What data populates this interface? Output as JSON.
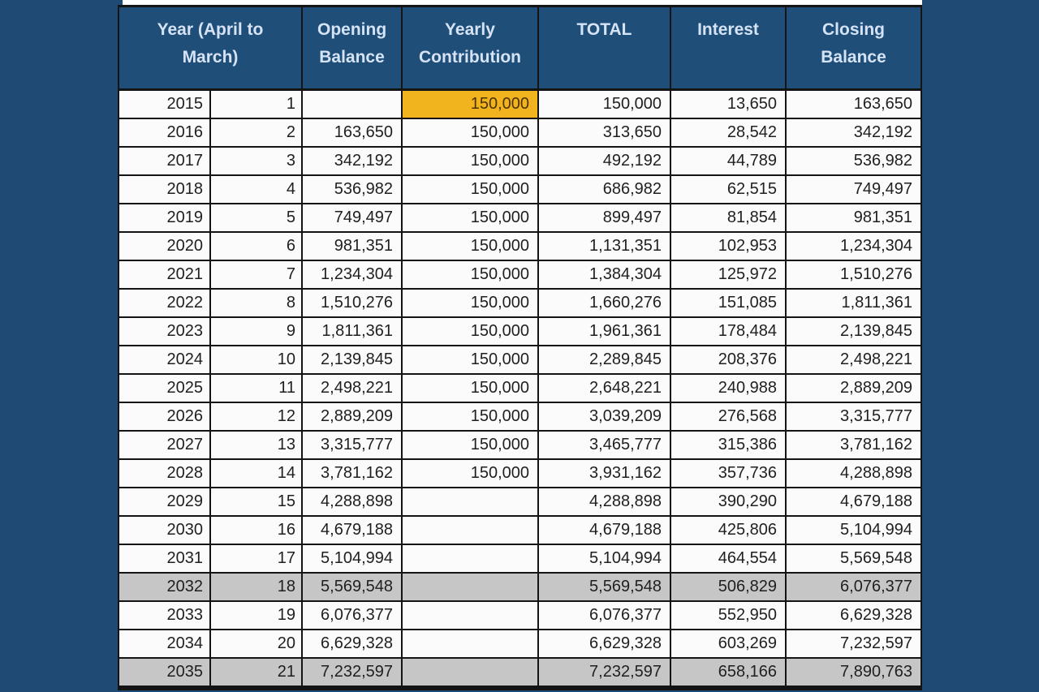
{
  "colors": {
    "page_bg": "#1e4a73",
    "strip_bg": "#ffffff",
    "header_bg": "#1f4e79",
    "header_text": "#d5e3f5",
    "row_bg": "#fbfbfb",
    "row_shaded_bg": "#c6c6c6",
    "highlight_bg": "#f2b41e",
    "highlight_text": "#4d3300",
    "grid_line": "#141414",
    "cell_text": "#1f1f1f"
  },
  "table": {
    "headers": {
      "year": "Year (April to March)",
      "opening": "Opening Balance",
      "contribution": "Yearly Contribution",
      "total": "TOTAL",
      "interest": "Interest",
      "closing": "Closing Balance"
    },
    "rows": [
      {
        "year": "2015",
        "n": "1",
        "opening": "",
        "contribution": "150,000",
        "total": "150,000",
        "interest": "13,650",
        "closing": "163,650",
        "highlight_contribution": true,
        "shaded": false
      },
      {
        "year": "2016",
        "n": "2",
        "opening": "163,650",
        "contribution": "150,000",
        "total": "313,650",
        "interest": "28,542",
        "closing": "342,192",
        "highlight_contribution": false,
        "shaded": false
      },
      {
        "year": "2017",
        "n": "3",
        "opening": "342,192",
        "contribution": "150,000",
        "total": "492,192",
        "interest": "44,789",
        "closing": "536,982",
        "highlight_contribution": false,
        "shaded": false
      },
      {
        "year": "2018",
        "n": "4",
        "opening": "536,982",
        "contribution": "150,000",
        "total": "686,982",
        "interest": "62,515",
        "closing": "749,497",
        "highlight_contribution": false,
        "shaded": false
      },
      {
        "year": "2019",
        "n": "5",
        "opening": "749,497",
        "contribution": "150,000",
        "total": "899,497",
        "interest": "81,854",
        "closing": "981,351",
        "highlight_contribution": false,
        "shaded": false
      },
      {
        "year": "2020",
        "n": "6",
        "opening": "981,351",
        "contribution": "150,000",
        "total": "1,131,351",
        "interest": "102,953",
        "closing": "1,234,304",
        "highlight_contribution": false,
        "shaded": false
      },
      {
        "year": "2021",
        "n": "7",
        "opening": "1,234,304",
        "contribution": "150,000",
        "total": "1,384,304",
        "interest": "125,972",
        "closing": "1,510,276",
        "highlight_contribution": false,
        "shaded": false
      },
      {
        "year": "2022",
        "n": "8",
        "opening": "1,510,276",
        "contribution": "150,000",
        "total": "1,660,276",
        "interest": "151,085",
        "closing": "1,811,361",
        "highlight_contribution": false,
        "shaded": false
      },
      {
        "year": "2023",
        "n": "9",
        "opening": "1,811,361",
        "contribution": "150,000",
        "total": "1,961,361",
        "interest": "178,484",
        "closing": "2,139,845",
        "highlight_contribution": false,
        "shaded": false
      },
      {
        "year": "2024",
        "n": "10",
        "opening": "2,139,845",
        "contribution": "150,000",
        "total": "2,289,845",
        "interest": "208,376",
        "closing": "2,498,221",
        "highlight_contribution": false,
        "shaded": false
      },
      {
        "year": "2025",
        "n": "11",
        "opening": "2,498,221",
        "contribution": "150,000",
        "total": "2,648,221",
        "interest": "240,988",
        "closing": "2,889,209",
        "highlight_contribution": false,
        "shaded": false
      },
      {
        "year": "2026",
        "n": "12",
        "opening": "2,889,209",
        "contribution": "150,000",
        "total": "3,039,209",
        "interest": "276,568",
        "closing": "3,315,777",
        "highlight_contribution": false,
        "shaded": false
      },
      {
        "year": "2027",
        "n": "13",
        "opening": "3,315,777",
        "contribution": "150,000",
        "total": "3,465,777",
        "interest": "315,386",
        "closing": "3,781,162",
        "highlight_contribution": false,
        "shaded": false
      },
      {
        "year": "2028",
        "n": "14",
        "opening": "3,781,162",
        "contribution": "150,000",
        "total": "3,931,162",
        "interest": "357,736",
        "closing": "4,288,898",
        "highlight_contribution": false,
        "shaded": false
      },
      {
        "year": "2029",
        "n": "15",
        "opening": "4,288,898",
        "contribution": "",
        "total": "4,288,898",
        "interest": "390,290",
        "closing": "4,679,188",
        "highlight_contribution": false,
        "shaded": false
      },
      {
        "year": "2030",
        "n": "16",
        "opening": "4,679,188",
        "contribution": "",
        "total": "4,679,188",
        "interest": "425,806",
        "closing": "5,104,994",
        "highlight_contribution": false,
        "shaded": false
      },
      {
        "year": "2031",
        "n": "17",
        "opening": "5,104,994",
        "contribution": "",
        "total": "5,104,994",
        "interest": "464,554",
        "closing": "5,569,548",
        "highlight_contribution": false,
        "shaded": false
      },
      {
        "year": "2032",
        "n": "18",
        "opening": "5,569,548",
        "contribution": "",
        "total": "5,569,548",
        "interest": "506,829",
        "closing": "6,076,377",
        "highlight_contribution": false,
        "shaded": true
      },
      {
        "year": "2033",
        "n": "19",
        "opening": "6,076,377",
        "contribution": "",
        "total": "6,076,377",
        "interest": "552,950",
        "closing": "6,629,328",
        "highlight_contribution": false,
        "shaded": false
      },
      {
        "year": "2034",
        "n": "20",
        "opening": "6,629,328",
        "contribution": "",
        "total": "6,629,328",
        "interest": "603,269",
        "closing": "7,232,597",
        "highlight_contribution": false,
        "shaded": false
      },
      {
        "year": "2035",
        "n": "21",
        "opening": "7,232,597",
        "contribution": "",
        "total": "7,232,597",
        "interest": "658,166",
        "closing": "7,890,763",
        "highlight_contribution": false,
        "shaded": true
      }
    ]
  }
}
